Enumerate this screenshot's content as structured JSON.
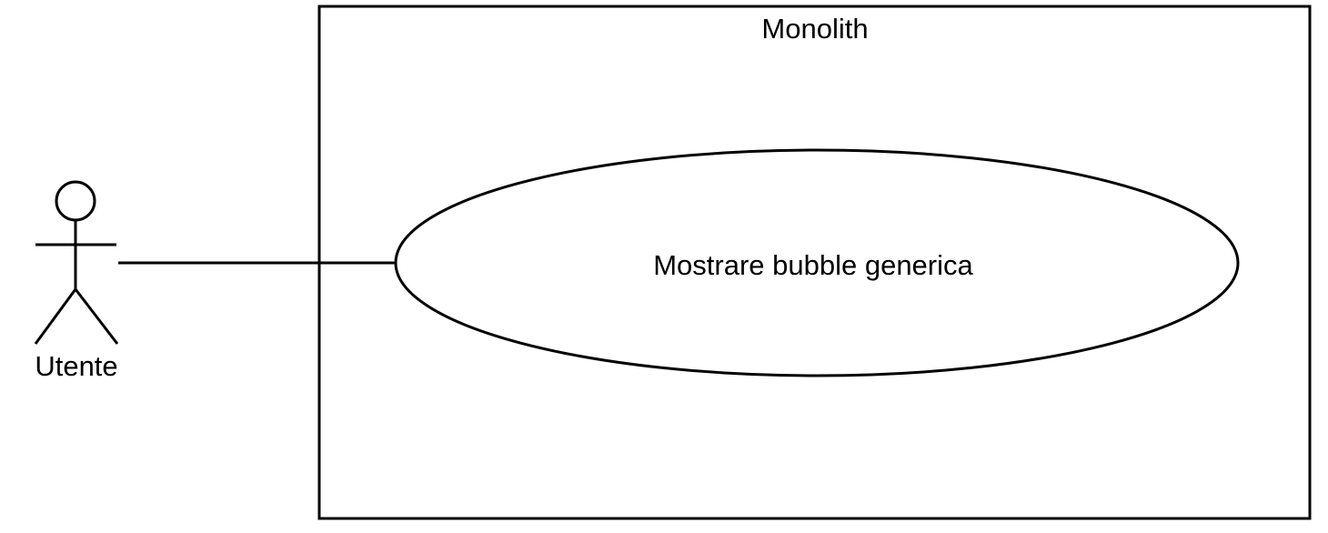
{
  "system": {
    "title": "Monolith"
  },
  "actor": {
    "label": "Utente"
  },
  "use_case": {
    "label": "Mostrare bubble generica"
  },
  "colors": {
    "stroke": "#000000",
    "background": "#ffffff"
  }
}
